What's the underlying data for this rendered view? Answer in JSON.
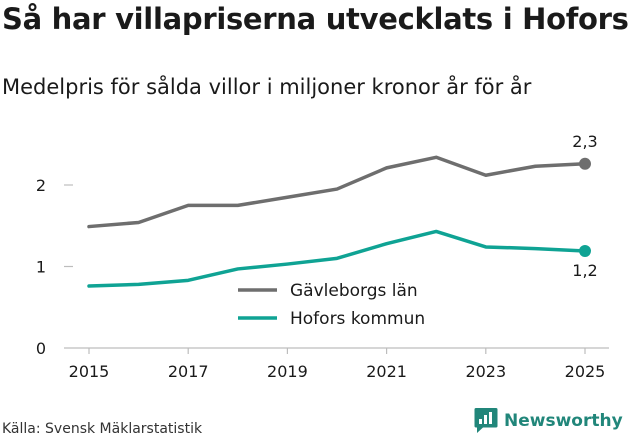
{
  "header": {
    "title": "Så har villapriserna utvecklats i Hofors",
    "subtitle": "Medelpris för sålda villor i miljoner kronor år för år"
  },
  "footer": {
    "source": "Källa: Svensk Mäklarstatistik",
    "brand_name": "Newsworthy"
  },
  "chart_data": {
    "type": "line",
    "title": "Så har villapriserna utvecklats i Hofors",
    "subtitle": "Medelpris för sålda villor i miljoner kronor år för år",
    "xlabel": "",
    "ylabel": "",
    "x": [
      2015,
      2016,
      2017,
      2018,
      2019,
      2020,
      2021,
      2022,
      2023,
      2024,
      2025
    ],
    "xticks": [
      "2015",
      "2017",
      "2019",
      "2021",
      "2023",
      "2025"
    ],
    "yticks": [
      "0",
      "1",
      "2"
    ],
    "ylim": [
      0,
      2.4
    ],
    "grid": "none",
    "legend_position": "center",
    "series": [
      {
        "name": "Gävleborgs län",
        "color": "#6e6e6e",
        "values": [
          1.49,
          1.54,
          1.75,
          1.75,
          1.85,
          1.95,
          2.21,
          2.34,
          2.12,
          2.23,
          2.26
        ],
        "end_label": "2,3"
      },
      {
        "name": "Hofors kommun",
        "color": "#0fa394",
        "values": [
          0.76,
          0.78,
          0.83,
          0.97,
          1.03,
          1.1,
          1.28,
          1.43,
          1.24,
          1.22,
          1.19
        ],
        "end_label": "1,2"
      }
    ]
  }
}
